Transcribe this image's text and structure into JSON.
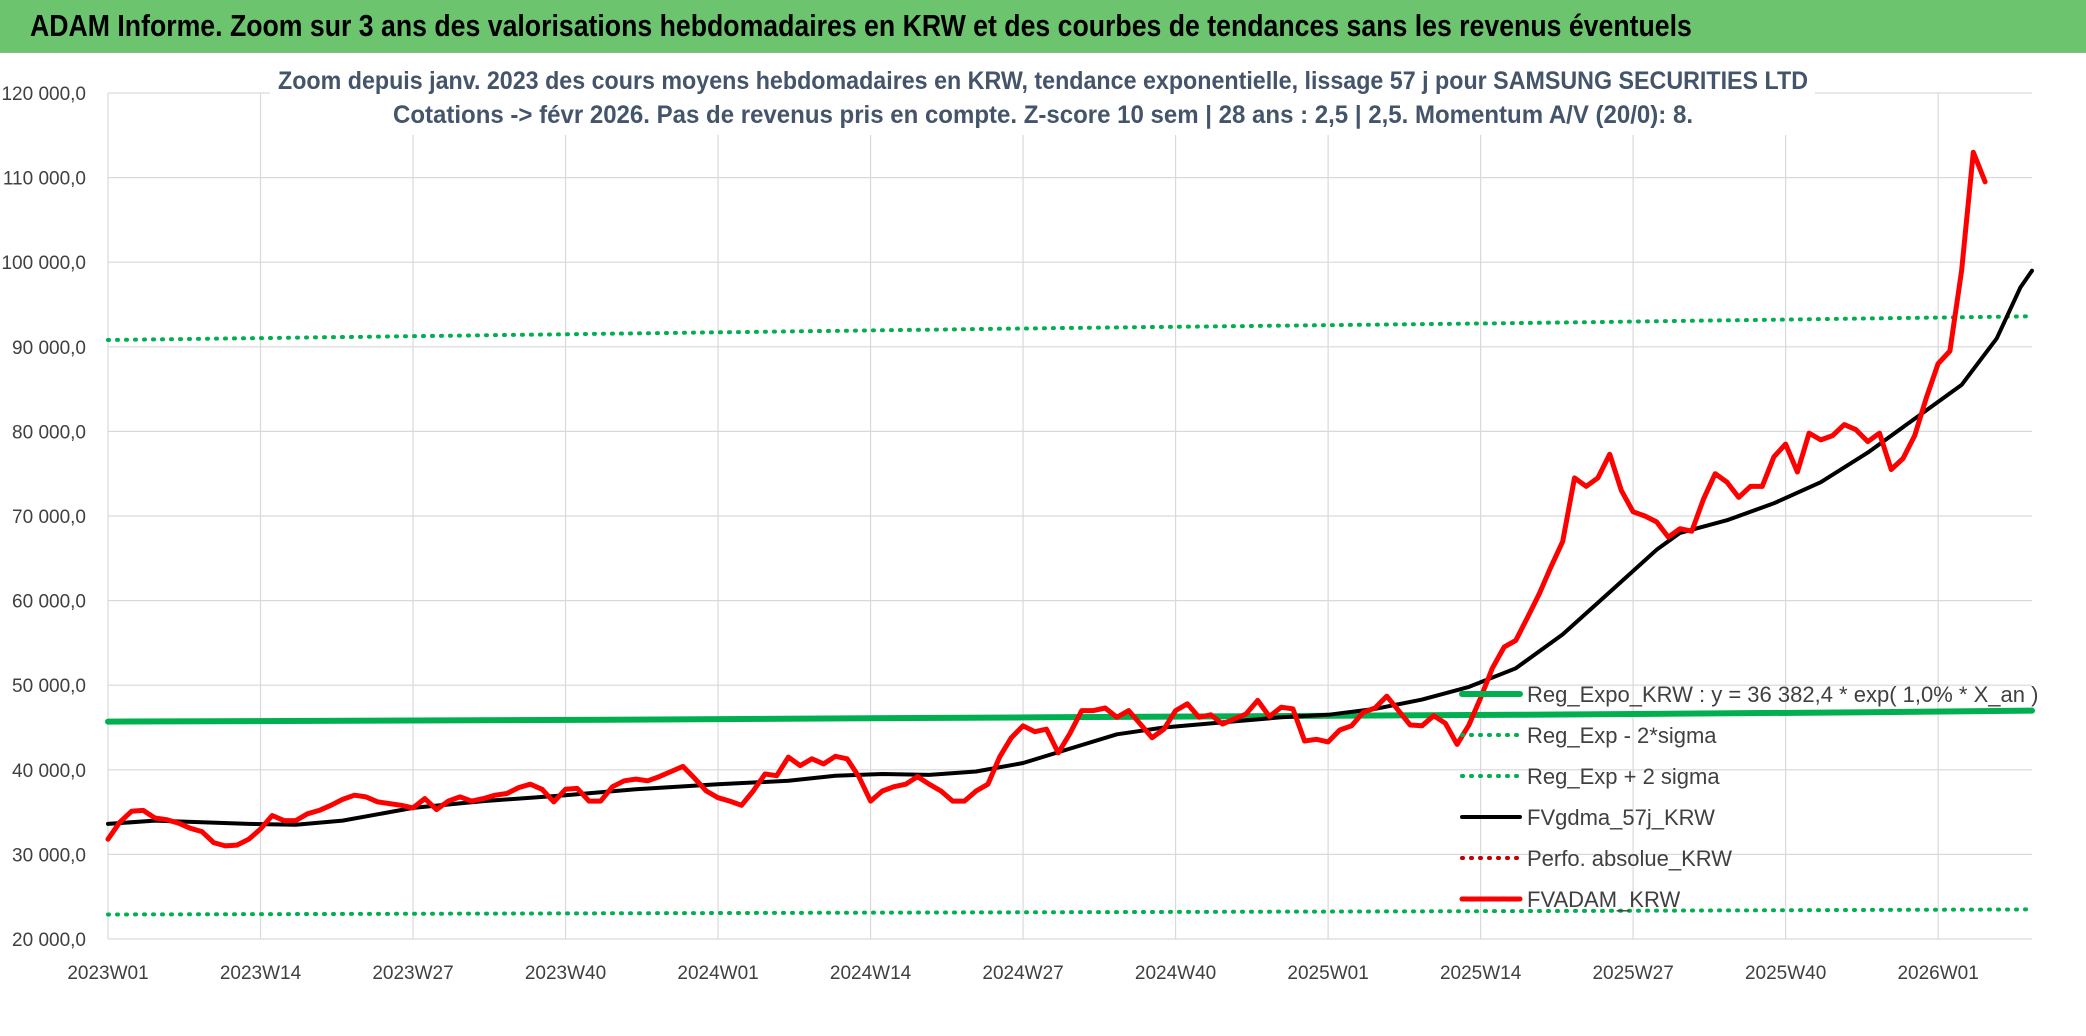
{
  "banner": {
    "title": "ADAM Informe. Zoom sur 3 ans des valorisations hebdomadaires en KRW et des courbes de tendances sans les revenus éventuels"
  },
  "colors": {
    "banner_bg": "#6cc46e",
    "regression": "#00b050",
    "fv_gdma": "#000000",
    "fv_adam": "#ff0000",
    "perfo": "#c00000",
    "grid": "#d9d9d9",
    "title_text": "#44546a"
  },
  "chart_data": {
    "type": "line",
    "title": "Zoom depuis janv. 2023 des cours moyens hebdomadaires en KRW, tendance exponentielle, lissage 57 j pour SAMSUNG SECURITIES LTD",
    "subtitle": "Cotations -> févr 2026. Pas de revenus pris en compte. Z-score 10 sem | 28 ans : 2,5 | 2,5. Momentum A/V (20/0): 8.",
    "xlabel": "",
    "ylabel": "",
    "ylim": [
      20000,
      120000
    ],
    "y_ticks": [
      "20 000,0",
      "30 000,0",
      "40 000,0",
      "50 000,0",
      "60 000,0",
      "70 000,0",
      "80 000,0",
      "90 000,0",
      "100 000,0",
      "110 000,0",
      "120 000,0"
    ],
    "x_ticks": [
      "2023W01",
      "2023W14",
      "2023W27",
      "2023W40",
      "2024W01",
      "2024W14",
      "2024W27",
      "2024W40",
      "2025W01",
      "2025W14",
      "2025W27",
      "2025W40",
      "2026W01"
    ],
    "x_tick_index": [
      0,
      13,
      26,
      39,
      52,
      65,
      78,
      91,
      104,
      117,
      130,
      143,
      156
    ],
    "x_count": 165,
    "grid": true,
    "legend_position": "right-center",
    "series": [
      {
        "name": "Reg_Expo_KRW : y = 36 382,4 * exp( 1,0% * X_an )",
        "style": "solid-thick",
        "color": "#00b050",
        "points": [
          [
            0,
            45700
          ],
          [
            40,
            45900
          ],
          [
            80,
            46200
          ],
          [
            120,
            46500
          ],
          [
            150,
            46800
          ],
          [
            164,
            47000
          ]
        ]
      },
      {
        "name": "Reg_Exp - 2*sigma",
        "style": "dotted",
        "color": "#00b050",
        "points": [
          [
            0,
            22900
          ],
          [
            60,
            23100
          ],
          [
            120,
            23300
          ],
          [
            164,
            23500
          ]
        ]
      },
      {
        "name": "Reg_Exp + 2 sigma",
        "style": "dotted",
        "color": "#00b050",
        "points": [
          [
            0,
            90800
          ],
          [
            40,
            91500
          ],
          [
            80,
            92200
          ],
          [
            120,
            92800
          ],
          [
            164,
            93600
          ]
        ]
      },
      {
        "name": "FVgdma_57j_KRW",
        "style": "solid",
        "color": "#000000",
        "points": [
          [
            0,
            33600
          ],
          [
            4,
            34000
          ],
          [
            8,
            33800
          ],
          [
            12,
            33600
          ],
          [
            16,
            33500
          ],
          [
            20,
            34000
          ],
          [
            26,
            35500
          ],
          [
            32,
            36300
          ],
          [
            39,
            37000
          ],
          [
            45,
            37700
          ],
          [
            52,
            38300
          ],
          [
            58,
            38700
          ],
          [
            62,
            39300
          ],
          [
            66,
            39500
          ],
          [
            70,
            39400
          ],
          [
            74,
            39800
          ],
          [
            78,
            40800
          ],
          [
            82,
            42500
          ],
          [
            86,
            44200
          ],
          [
            90,
            45000
          ],
          [
            95,
            45600
          ],
          [
            100,
            46200
          ],
          [
            104,
            46500
          ],
          [
            108,
            47200
          ],
          [
            112,
            48300
          ],
          [
            116,
            49800
          ],
          [
            120,
            52000
          ],
          [
            124,
            56000
          ],
          [
            128,
            61000
          ],
          [
            132,
            66000
          ],
          [
            134,
            68000
          ],
          [
            138,
            69500
          ],
          [
            142,
            71500
          ],
          [
            146,
            74000
          ],
          [
            150,
            77500
          ],
          [
            154,
            81500
          ],
          [
            158,
            85500
          ],
          [
            161,
            91000
          ],
          [
            163,
            97000
          ],
          [
            164,
            99000
          ]
        ]
      },
      {
        "name": "Perfo. absolue_KRW",
        "style": "dotted",
        "color": "#c00000",
        "points": []
      },
      {
        "name": "FVADAM_KRW",
        "style": "solid-thick",
        "color": "#ff0000",
        "points": [
          [
            0,
            31800
          ],
          [
            1,
            33800
          ],
          [
            2,
            35100
          ],
          [
            3,
            35200
          ],
          [
            4,
            34300
          ],
          [
            5,
            34100
          ],
          [
            6,
            33700
          ],
          [
            7,
            33100
          ],
          [
            8,
            32700
          ],
          [
            9,
            31400
          ],
          [
            10,
            31000
          ],
          [
            11,
            31100
          ],
          [
            12,
            31800
          ],
          [
            13,
            33000
          ],
          [
            14,
            34600
          ],
          [
            15,
            34000
          ],
          [
            16,
            34000
          ],
          [
            17,
            34800
          ],
          [
            18,
            35200
          ],
          [
            19,
            35800
          ],
          [
            20,
            36500
          ],
          [
            21,
            37000
          ],
          [
            22,
            36800
          ],
          [
            23,
            36200
          ],
          [
            24,
            36000
          ],
          [
            25,
            35800
          ],
          [
            26,
            35500
          ],
          [
            27,
            36600
          ],
          [
            28,
            35300
          ],
          [
            29,
            36300
          ],
          [
            30,
            36800
          ],
          [
            31,
            36300
          ],
          [
            32,
            36600
          ],
          [
            33,
            37000
          ],
          [
            34,
            37200
          ],
          [
            35,
            37900
          ],
          [
            36,
            38300
          ],
          [
            37,
            37700
          ],
          [
            38,
            36200
          ],
          [
            39,
            37700
          ],
          [
            40,
            37800
          ],
          [
            41,
            36300
          ],
          [
            42,
            36300
          ],
          [
            43,
            38000
          ],
          [
            44,
            38700
          ],
          [
            45,
            38900
          ],
          [
            46,
            38700
          ],
          [
            47,
            39200
          ],
          [
            48,
            39800
          ],
          [
            49,
            40400
          ],
          [
            50,
            39000
          ],
          [
            51,
            37500
          ],
          [
            52,
            36700
          ],
          [
            53,
            36300
          ],
          [
            54,
            35800
          ],
          [
            55,
            37500
          ],
          [
            56,
            39500
          ],
          [
            57,
            39300
          ],
          [
            58,
            41500
          ],
          [
            59,
            40500
          ],
          [
            60,
            41300
          ],
          [
            61,
            40700
          ],
          [
            62,
            41600
          ],
          [
            63,
            41300
          ],
          [
            64,
            39200
          ],
          [
            65,
            36300
          ],
          [
            66,
            37500
          ],
          [
            67,
            38000
          ],
          [
            68,
            38300
          ],
          [
            69,
            39200
          ],
          [
            70,
            38300
          ],
          [
            71,
            37500
          ],
          [
            72,
            36300
          ],
          [
            73,
            36300
          ],
          [
            74,
            37500
          ],
          [
            75,
            38300
          ],
          [
            76,
            41500
          ],
          [
            77,
            43800
          ],
          [
            78,
            45200
          ],
          [
            79,
            44500
          ],
          [
            80,
            44800
          ],
          [
            81,
            42000
          ],
          [
            82,
            44300
          ],
          [
            83,
            47000
          ],
          [
            84,
            47000
          ],
          [
            85,
            47300
          ],
          [
            86,
            46200
          ],
          [
            87,
            47000
          ],
          [
            88,
            45400
          ],
          [
            89,
            43800
          ],
          [
            90,
            44800
          ],
          [
            91,
            47000
          ],
          [
            92,
            47800
          ],
          [
            93,
            46200
          ],
          [
            94,
            46500
          ],
          [
            95,
            45400
          ],
          [
            96,
            46000
          ],
          [
            97,
            46600
          ],
          [
            98,
            48200
          ],
          [
            99,
            46300
          ],
          [
            100,
            47400
          ],
          [
            101,
            47200
          ],
          [
            102,
            43400
          ],
          [
            103,
            43600
          ],
          [
            104,
            43300
          ],
          [
            105,
            44700
          ],
          [
            106,
            45200
          ],
          [
            107,
            46800
          ],
          [
            108,
            47300
          ],
          [
            109,
            48700
          ],
          [
            110,
            47000
          ],
          [
            111,
            45300
          ],
          [
            112,
            45200
          ],
          [
            113,
            46400
          ],
          [
            114,
            45500
          ],
          [
            115,
            43000
          ],
          [
            116,
            45300
          ],
          [
            117,
            48500
          ],
          [
            118,
            52000
          ],
          [
            119,
            54500
          ],
          [
            120,
            55300
          ],
          [
            121,
            58000
          ],
          [
            122,
            60800
          ],
          [
            123,
            64000
          ],
          [
            124,
            67000
          ],
          [
            125,
            74500
          ],
          [
            126,
            73500
          ],
          [
            127,
            74500
          ],
          [
            128,
            77300
          ],
          [
            129,
            73000
          ],
          [
            130,
            70500
          ],
          [
            131,
            70000
          ],
          [
            132,
            69300
          ],
          [
            133,
            67500
          ],
          [
            134,
            68500
          ],
          [
            135,
            68200
          ],
          [
            136,
            72000
          ],
          [
            137,
            75000
          ],
          [
            138,
            74000
          ],
          [
            139,
            72200
          ],
          [
            140,
            73500
          ],
          [
            141,
            73500
          ],
          [
            142,
            77000
          ],
          [
            143,
            78500
          ],
          [
            144,
            75200
          ],
          [
            145,
            79800
          ],
          [
            146,
            79000
          ],
          [
            147,
            79500
          ],
          [
            148,
            80800
          ],
          [
            149,
            80200
          ],
          [
            150,
            78800
          ],
          [
            151,
            79800
          ],
          [
            152,
            75500
          ],
          [
            153,
            76800
          ],
          [
            154,
            79500
          ],
          [
            155,
            84000
          ],
          [
            156,
            88000
          ],
          [
            157,
            89500
          ],
          [
            158,
            99000
          ],
          [
            159,
            113000
          ],
          [
            160,
            109500
          ]
        ]
      }
    ]
  }
}
